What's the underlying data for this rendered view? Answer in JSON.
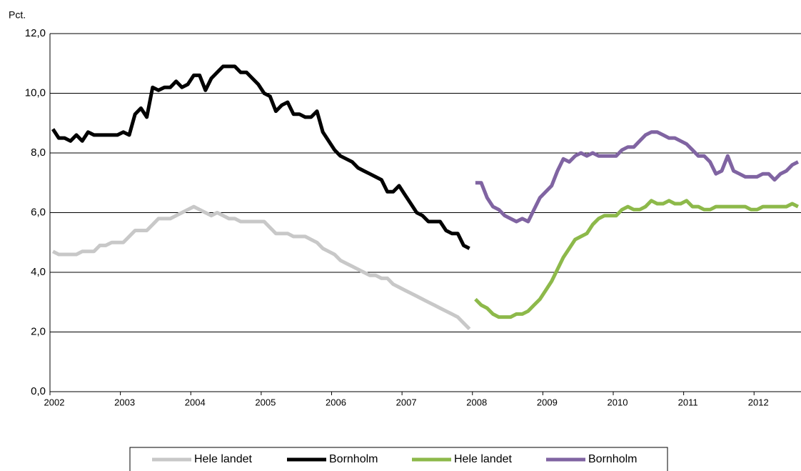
{
  "chart_data": {
    "type": "line",
    "y_label": "Pct.",
    "categories": [
      "2002",
      null,
      null,
      null,
      null,
      null,
      null,
      null,
      null,
      null,
      null,
      null,
      "2003",
      null,
      null,
      null,
      null,
      null,
      null,
      null,
      null,
      null,
      null,
      null,
      "2004",
      null,
      null,
      null,
      null,
      null,
      null,
      null,
      null,
      null,
      null,
      null,
      "2005",
      null,
      null,
      null,
      null,
      null,
      null,
      null,
      null,
      null,
      null,
      null,
      "2006",
      null,
      null,
      null,
      null,
      null,
      null,
      null,
      null,
      null,
      null,
      null,
      "2007",
      null,
      null,
      null,
      null,
      null,
      null,
      null,
      null,
      null,
      null,
      null,
      "2008",
      null,
      null,
      null,
      null,
      null,
      null,
      null,
      null,
      null,
      null,
      null,
      "2009",
      null,
      null,
      null,
      null,
      null,
      null,
      null,
      null,
      null,
      null,
      null,
      "2010",
      null,
      null,
      null,
      null,
      null,
      null,
      null,
      null,
      null,
      null,
      null,
      "2011",
      null,
      null,
      null,
      null,
      null,
      null,
      null,
      null,
      null,
      null,
      null,
      "2012",
      null,
      null,
      null,
      null,
      null,
      null,
      null
    ],
    "series": [
      {
        "name": "Hele landet",
        "color": "#c8c8c8",
        "values": [
          4.7,
          4.6,
          4.6,
          4.6,
          4.6,
          4.7,
          4.7,
          4.7,
          4.9,
          4.9,
          5.0,
          5.0,
          5.0,
          5.2,
          5.4,
          5.4,
          5.4,
          5.6,
          5.8,
          5.8,
          5.8,
          5.9,
          6.0,
          6.1,
          6.2,
          6.1,
          6.0,
          5.9,
          6.0,
          5.9,
          5.8,
          5.8,
          5.7,
          5.7,
          5.7,
          5.7,
          5.7,
          5.5,
          5.3,
          5.3,
          5.3,
          5.2,
          5.2,
          5.2,
          5.1,
          5.0,
          4.8,
          4.7,
          4.6,
          4.4,
          4.3,
          4.2,
          4.1,
          4.0,
          3.9,
          3.9,
          3.8,
          3.8,
          3.6,
          3.5,
          3.4,
          3.3,
          3.2,
          3.1,
          3.0,
          2.9,
          2.8,
          2.7,
          2.6,
          2.5,
          2.3,
          2.1,
          null,
          null,
          null,
          null,
          null,
          null,
          null,
          null,
          null,
          null,
          null,
          null,
          null,
          null,
          null,
          null,
          null,
          null,
          null,
          null,
          null,
          null,
          null,
          null,
          null,
          null,
          null,
          null,
          null,
          null,
          null,
          null,
          null,
          null,
          null,
          null,
          null,
          null,
          null,
          null,
          null,
          null,
          null,
          null,
          null,
          null,
          null,
          null,
          null,
          null,
          null,
          null,
          null,
          null,
          null,
          null
        ]
      },
      {
        "name": "Bornholm",
        "color": "#000000",
        "values": [
          8.8,
          8.5,
          8.5,
          8.4,
          8.6,
          8.4,
          8.7,
          8.6,
          8.6,
          8.6,
          8.6,
          8.6,
          8.7,
          8.6,
          9.3,
          9.5,
          9.2,
          10.2,
          10.1,
          10.2,
          10.2,
          10.4,
          10.2,
          10.3,
          10.6,
          10.6,
          10.1,
          10.5,
          10.7,
          10.9,
          10.9,
          10.9,
          10.7,
          10.7,
          10.5,
          10.3,
          10.0,
          9.9,
          9.4,
          9.6,
          9.7,
          9.3,
          9.3,
          9.2,
          9.2,
          9.4,
          8.7,
          8.4,
          8.1,
          7.9,
          7.8,
          7.7,
          7.5,
          7.4,
          7.3,
          7.2,
          7.1,
          6.7,
          6.7,
          6.9,
          6.6,
          6.3,
          6.0,
          5.9,
          5.7,
          5.7,
          5.7,
          5.4,
          5.3,
          5.3,
          4.9,
          4.8,
          null,
          null,
          null,
          null,
          null,
          null,
          null,
          null,
          null,
          null,
          null,
          null,
          null,
          null,
          null,
          null,
          null,
          null,
          null,
          null,
          null,
          null,
          null,
          null,
          null,
          null,
          null,
          null,
          null,
          null,
          null,
          null,
          null,
          null,
          null,
          null,
          null,
          null,
          null,
          null,
          null,
          null,
          null,
          null,
          null,
          null,
          null,
          null,
          null,
          null,
          null,
          null,
          null,
          null,
          null,
          null
        ]
      },
      {
        "name": "Hele landet",
        "color": "#8db94a",
        "values": [
          null,
          null,
          null,
          null,
          null,
          null,
          null,
          null,
          null,
          null,
          null,
          null,
          null,
          null,
          null,
          null,
          null,
          null,
          null,
          null,
          null,
          null,
          null,
          null,
          null,
          null,
          null,
          null,
          null,
          null,
          null,
          null,
          null,
          null,
          null,
          null,
          null,
          null,
          null,
          null,
          null,
          null,
          null,
          null,
          null,
          null,
          null,
          null,
          null,
          null,
          null,
          null,
          null,
          null,
          null,
          null,
          null,
          null,
          null,
          null,
          null,
          null,
          null,
          null,
          null,
          null,
          null,
          null,
          null,
          null,
          null,
          null,
          3.1,
          2.9,
          2.8,
          2.6,
          2.5,
          2.5,
          2.5,
          2.6,
          2.6,
          2.7,
          2.9,
          3.1,
          3.4,
          3.7,
          4.1,
          4.5,
          4.8,
          5.1,
          5.2,
          5.3,
          5.6,
          5.8,
          5.9,
          5.9,
          5.9,
          6.1,
          6.2,
          6.1,
          6.1,
          6.2,
          6.4,
          6.3,
          6.3,
          6.4,
          6.3,
          6.3,
          6.4,
          6.2,
          6.2,
          6.1,
          6.1,
          6.2,
          6.2,
          6.2,
          6.2,
          6.2,
          6.2,
          6.1,
          6.1,
          6.2,
          6.2,
          6.2,
          6.2,
          6.2,
          6.3,
          6.2
        ]
      },
      {
        "name": "Bornholm",
        "color": "#8064a2",
        "values": [
          null,
          null,
          null,
          null,
          null,
          null,
          null,
          null,
          null,
          null,
          null,
          null,
          null,
          null,
          null,
          null,
          null,
          null,
          null,
          null,
          null,
          null,
          null,
          null,
          null,
          null,
          null,
          null,
          null,
          null,
          null,
          null,
          null,
          null,
          null,
          null,
          null,
          null,
          null,
          null,
          null,
          null,
          null,
          null,
          null,
          null,
          null,
          null,
          null,
          null,
          null,
          null,
          null,
          null,
          null,
          null,
          null,
          null,
          null,
          null,
          null,
          null,
          null,
          null,
          null,
          null,
          null,
          null,
          null,
          null,
          null,
          null,
          7.0,
          7.0,
          6.5,
          6.2,
          6.1,
          5.9,
          5.8,
          5.7,
          5.8,
          5.7,
          6.1,
          6.5,
          6.7,
          6.9,
          7.4,
          7.8,
          7.7,
          7.9,
          8.0,
          7.9,
          8.0,
          7.9,
          7.9,
          7.9,
          7.9,
          8.1,
          8.2,
          8.2,
          8.4,
          8.6,
          8.7,
          8.7,
          8.6,
          8.5,
          8.5,
          8.4,
          8.3,
          8.1,
          7.9,
          7.9,
          7.7,
          7.3,
          7.4,
          7.9,
          7.4,
          7.3,
          7.2,
          7.2,
          7.2,
          7.3,
          7.3,
          7.1,
          7.3,
          7.4,
          7.6,
          7.7
        ]
      }
    ],
    "ylim": [
      0,
      12
    ],
    "yticks": [
      {
        "value": 0,
        "label": "0,0"
      },
      {
        "value": 2,
        "label": "2,0"
      },
      {
        "value": 4,
        "label": "4,0"
      },
      {
        "value": 6,
        "label": "6,0"
      },
      {
        "value": 8,
        "label": "8,0"
      },
      {
        "value": 10,
        "label": "10,0"
      },
      {
        "value": 12,
        "label": "12,0"
      }
    ],
    "grid": true,
    "legend": "bottom"
  }
}
